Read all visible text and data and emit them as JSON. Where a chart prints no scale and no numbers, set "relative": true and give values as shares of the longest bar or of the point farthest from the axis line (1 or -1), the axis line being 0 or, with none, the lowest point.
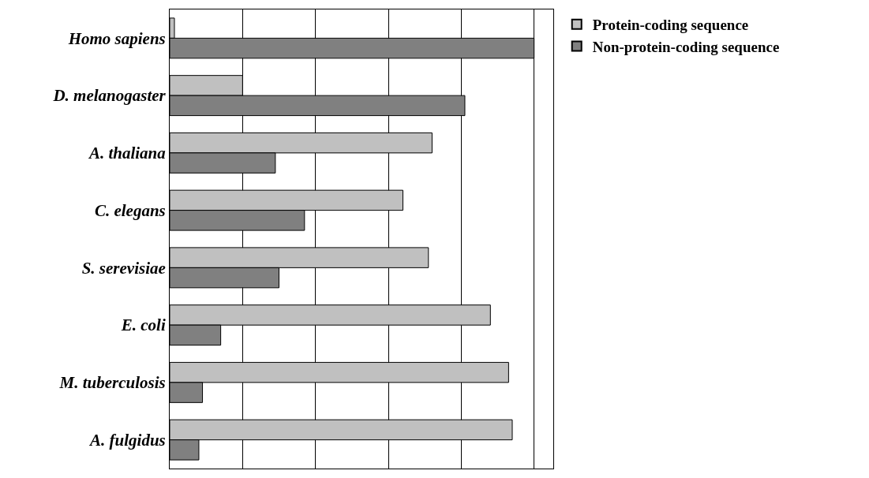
{
  "chart_data": {
    "type": "bar",
    "orientation": "horizontal",
    "relative": true,
    "grid": "x",
    "legend": "top right",
    "categories": [
      "Homo sapiens",
      "D. melanogaster",
      "A. thaliana",
      "C. elegans",
      "S. serevisiae",
      "E. coli",
      "M. tuberculosis",
      "A. fulgidus"
    ],
    "series": [
      {
        "name": "Protein-coding sequence",
        "color": "#c0c0c0",
        "values": [
          0.013,
          0.2,
          0.72,
          0.64,
          0.71,
          0.88,
          0.93,
          0.94
        ]
      },
      {
        "name": "Non-protein-coding sequence",
        "color": "#808080",
        "values": [
          1,
          0.81,
          0.29,
          0.37,
          0.3,
          0.14,
          0.09,
          0.08
        ]
      }
    ]
  }
}
